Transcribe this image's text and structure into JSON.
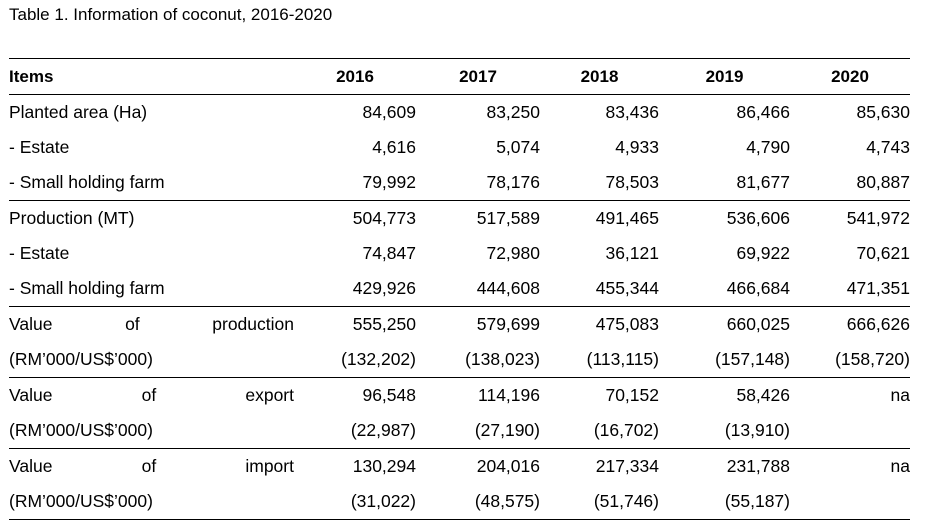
{
  "caption": "Table 1. Information of coconut, 2016-2020",
  "table": {
    "headers": [
      "Items",
      "2016",
      "2017",
      "2018",
      "2019",
      "2020"
    ],
    "rows": [
      {
        "label": "Planted area (Ha)",
        "values": [
          "84,609",
          "83,250",
          "83,436",
          "86,466",
          "85,630"
        ]
      },
      {
        "label": "- Estate",
        "values": [
          "4,616",
          "5,074",
          "4,933",
          "4,790",
          "4,743"
        ]
      },
      {
        "label": "- Small holding farm",
        "values": [
          "79,992",
          "78,176",
          "78,503",
          "81,677",
          "80,887"
        ]
      },
      {
        "label": "Production (MT)",
        "values": [
          "504,773",
          "517,589",
          "491,465",
          "536,606",
          "541,972"
        ]
      },
      {
        "label": "- Estate",
        "values": [
          "74,847",
          "72,980",
          "36,121",
          "69,922",
          "70,621"
        ]
      },
      {
        "label": "- Small holding farm",
        "values": [
          "429,926",
          "444,608",
          "455,344",
          "466,684",
          "471,351"
        ]
      },
      {
        "label_words": [
          "Value",
          "of",
          "production"
        ],
        "values": [
          "555,250",
          "579,699",
          "475,083",
          "660,025",
          "666,626"
        ]
      },
      {
        "label": "(RM’000/US$’000)",
        "values": [
          "(132,202)",
          "(138,023)",
          "(113,115)",
          "(157,148)",
          "(158,720)"
        ]
      },
      {
        "label_words": [
          "Value",
          "of",
          "export"
        ],
        "values": [
          "96,548",
          "114,196",
          "70,152",
          "58,426",
          "na"
        ]
      },
      {
        "label": "(RM’000/US$’000)",
        "values": [
          "(22,987)",
          "(27,190)",
          "(16,702)",
          "(13,910)",
          ""
        ]
      },
      {
        "label_words": [
          "Value",
          "of",
          "import"
        ],
        "values": [
          "130,294",
          "204,016",
          "217,334",
          "231,788",
          "na"
        ]
      },
      {
        "label": "(RM’000/US$’000)",
        "values": [
          "(31,022)",
          "(48,575)",
          "(51,746)",
          "(55,187)",
          ""
        ]
      }
    ]
  }
}
